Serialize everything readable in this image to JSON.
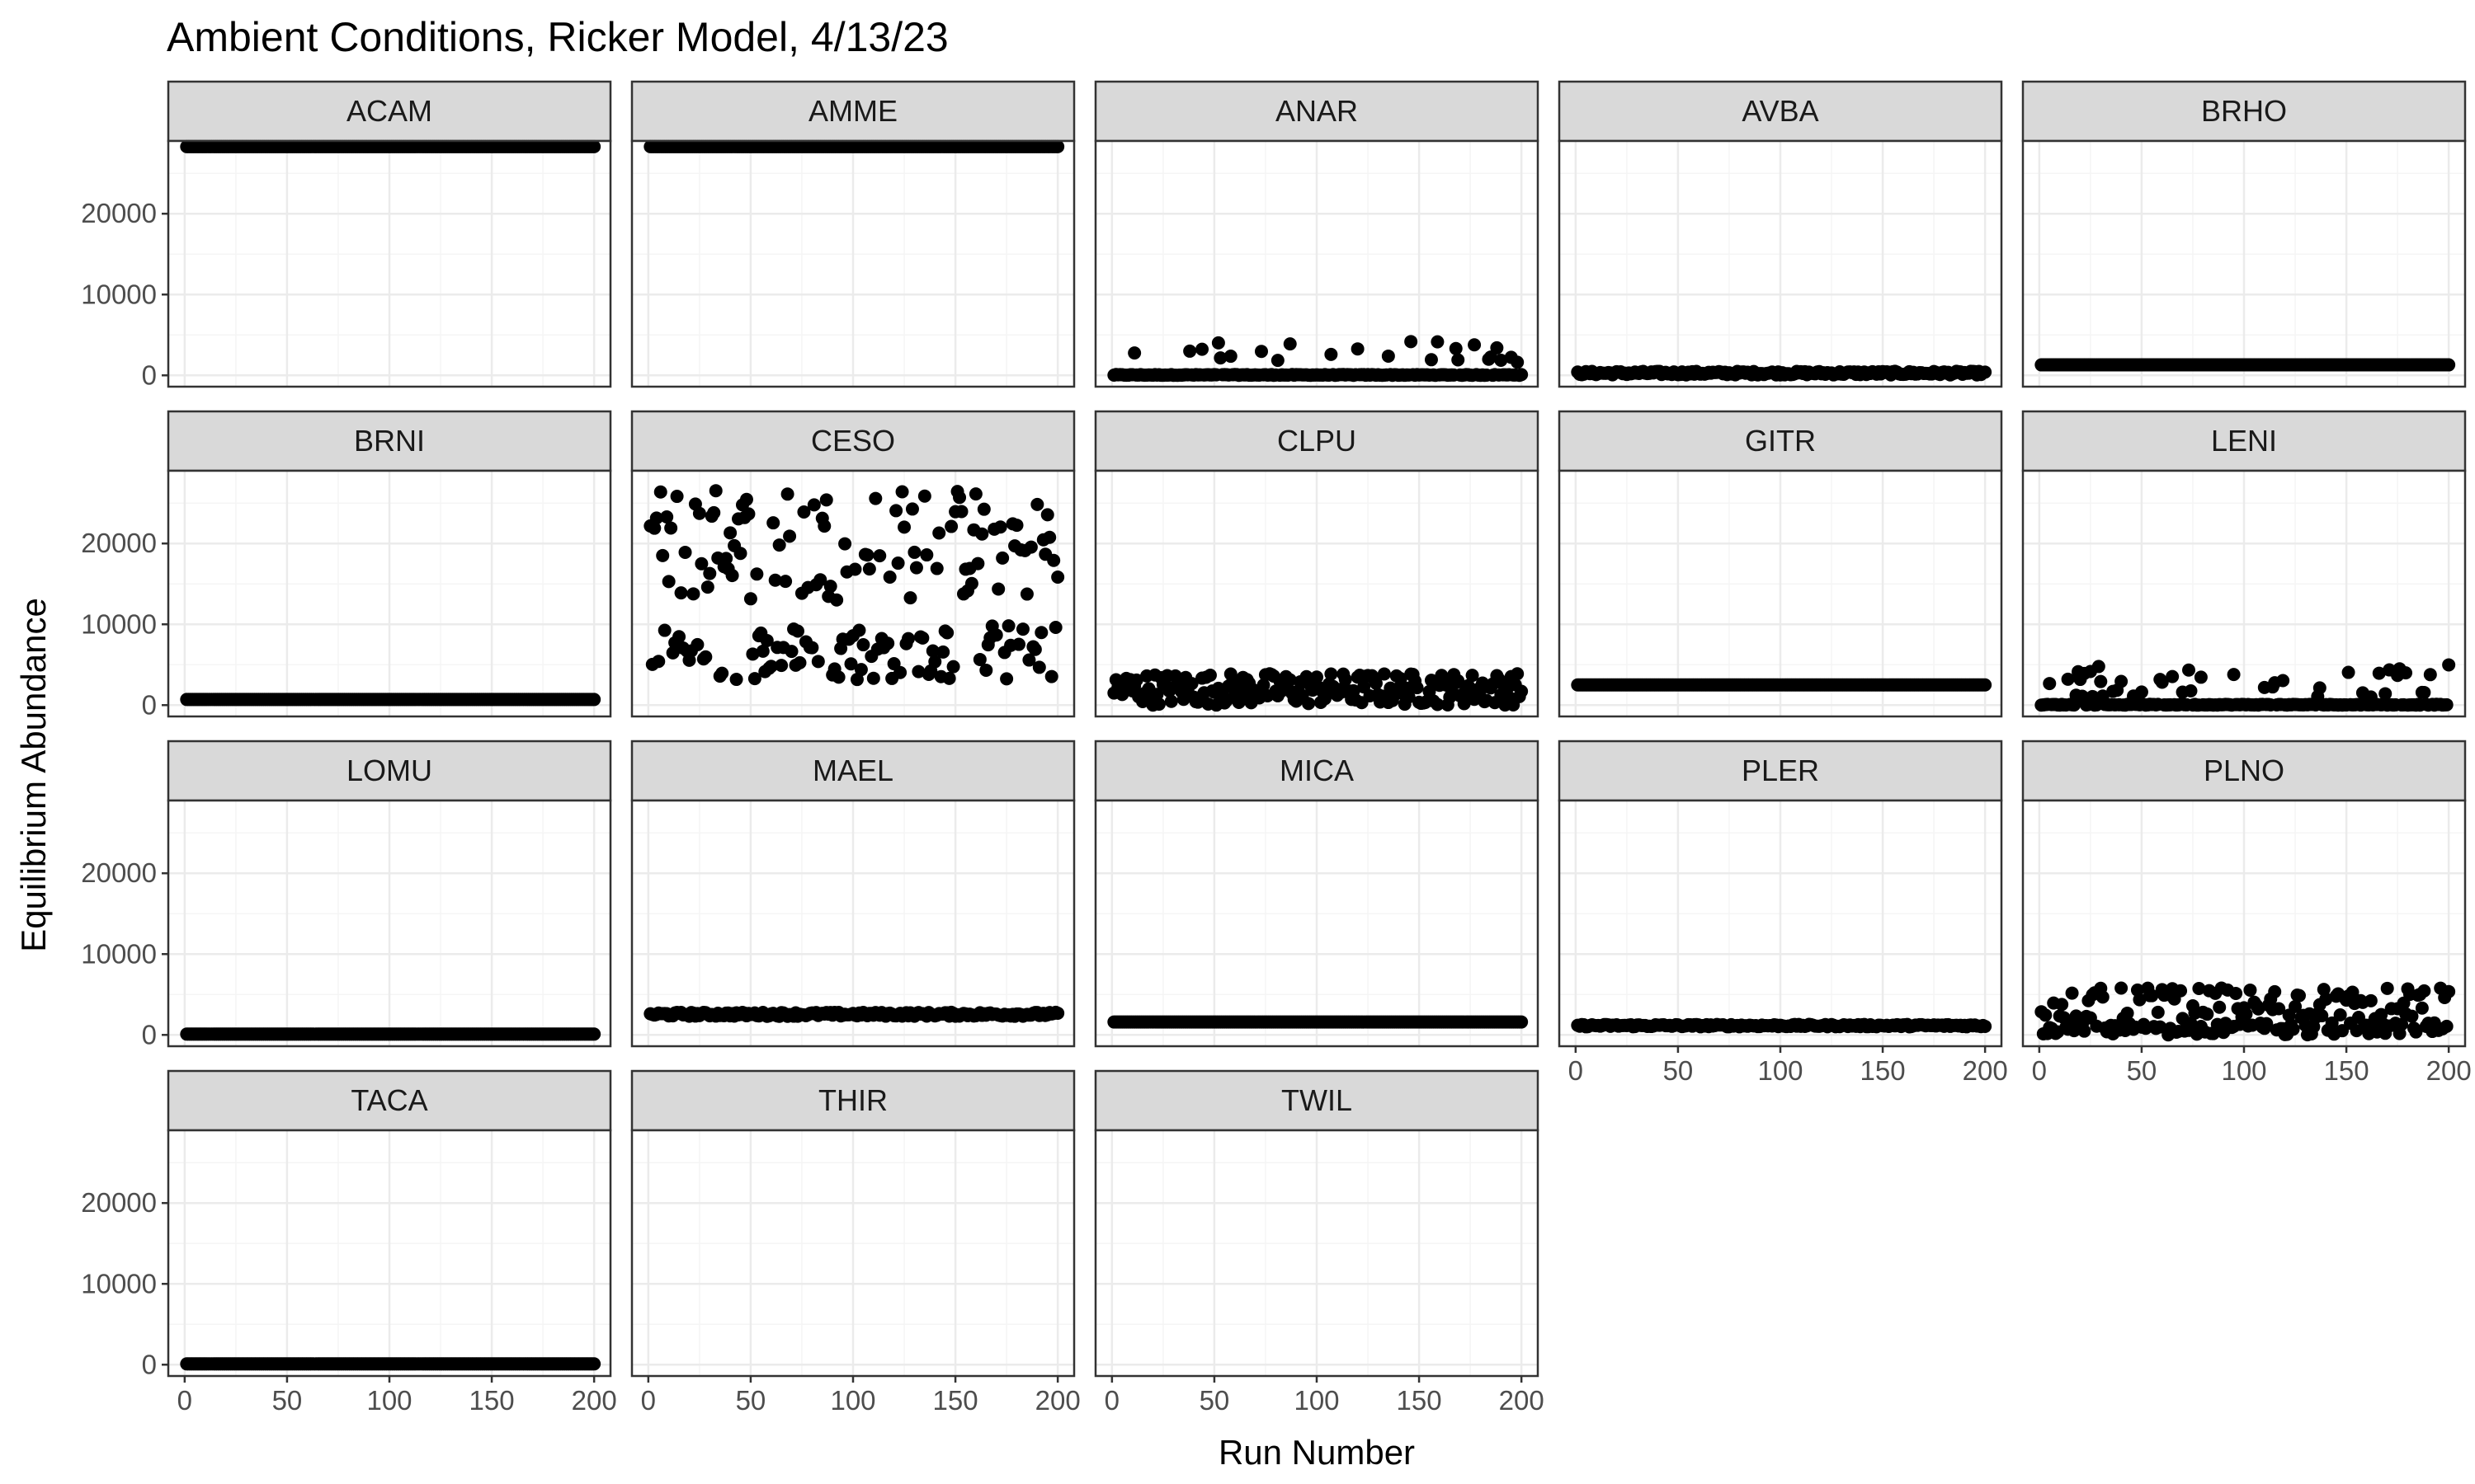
{
  "chart_data": {
    "type": "scatter",
    "title": "Ambient Conditions, Ricker Model, 4/13/23",
    "xlabel": "Run Number",
    "ylabel": "Equilibrium Abundance",
    "xlim": [
      -8,
      208
    ],
    "ylim": [
      -1400,
      29000
    ],
    "x_ticks": [
      0,
      50,
      100,
      150,
      200
    ],
    "y_ticks": [
      0,
      10000,
      20000
    ],
    "x_tick_labels": [
      "0",
      "50",
      "100",
      "150",
      "200"
    ],
    "y_tick_labels": [
      "0",
      "10000",
      "20000"
    ],
    "grid": true,
    "facet_layout": "wrap, 5 columns",
    "point_color": "#000000",
    "panel_border_color": "#333333",
    "strip_fill": "#d9d9d9",
    "gridline_major_color": "#ebebeb",
    "gridline_minor_color": "#f5f5f5",
    "runs": [
      1,
      200
    ],
    "series": [
      {
        "name": "ACAM",
        "pattern": "constant",
        "value": 28300
      },
      {
        "name": "AMME",
        "pattern": "constant",
        "value": 28300
      },
      {
        "name": "ANAR",
        "pattern": "mostly_zero_with_spikes",
        "base": 100,
        "spike_min": 1500,
        "spike_max": 4200,
        "spike_fraction": 0.12
      },
      {
        "name": "AVBA",
        "pattern": "noisy_low",
        "min": 50,
        "max": 500
      },
      {
        "name": "BRHO",
        "pattern": "constant",
        "value": 1300
      },
      {
        "name": "BRNI",
        "pattern": "constant",
        "value": 700
      },
      {
        "name": "CESO",
        "pattern": "bimodal",
        "low_min": 3000,
        "low_max": 10000,
        "high_min": 13000,
        "high_max": 27000
      },
      {
        "name": "CLPU",
        "pattern": "noisy_low",
        "min": 0,
        "max": 4000
      },
      {
        "name": "GITR",
        "pattern": "constant",
        "value": 2500
      },
      {
        "name": "LENI",
        "pattern": "mostly_zero_with_spikes",
        "base": 100,
        "spike_min": 1000,
        "spike_max": 5000,
        "spike_fraction": 0.2
      },
      {
        "name": "LOMU",
        "pattern": "constant",
        "value": 100
      },
      {
        "name": "MAEL",
        "pattern": "noisy_low",
        "min": 2300,
        "max": 2800
      },
      {
        "name": "MICA",
        "pattern": "constant",
        "value": 1600
      },
      {
        "name": "PLER",
        "pattern": "noisy_low",
        "min": 1000,
        "max": 1300
      },
      {
        "name": "PLNO",
        "pattern": "bimodal",
        "low_min": 0,
        "low_max": 1500,
        "high_min": 2000,
        "high_max": 5800
      },
      {
        "name": "TACA",
        "pattern": "constant",
        "value": 100
      },
      {
        "name": "THIR",
        "pattern": "empty"
      },
      {
        "name": "TWIL",
        "pattern": "empty"
      }
    ]
  }
}
